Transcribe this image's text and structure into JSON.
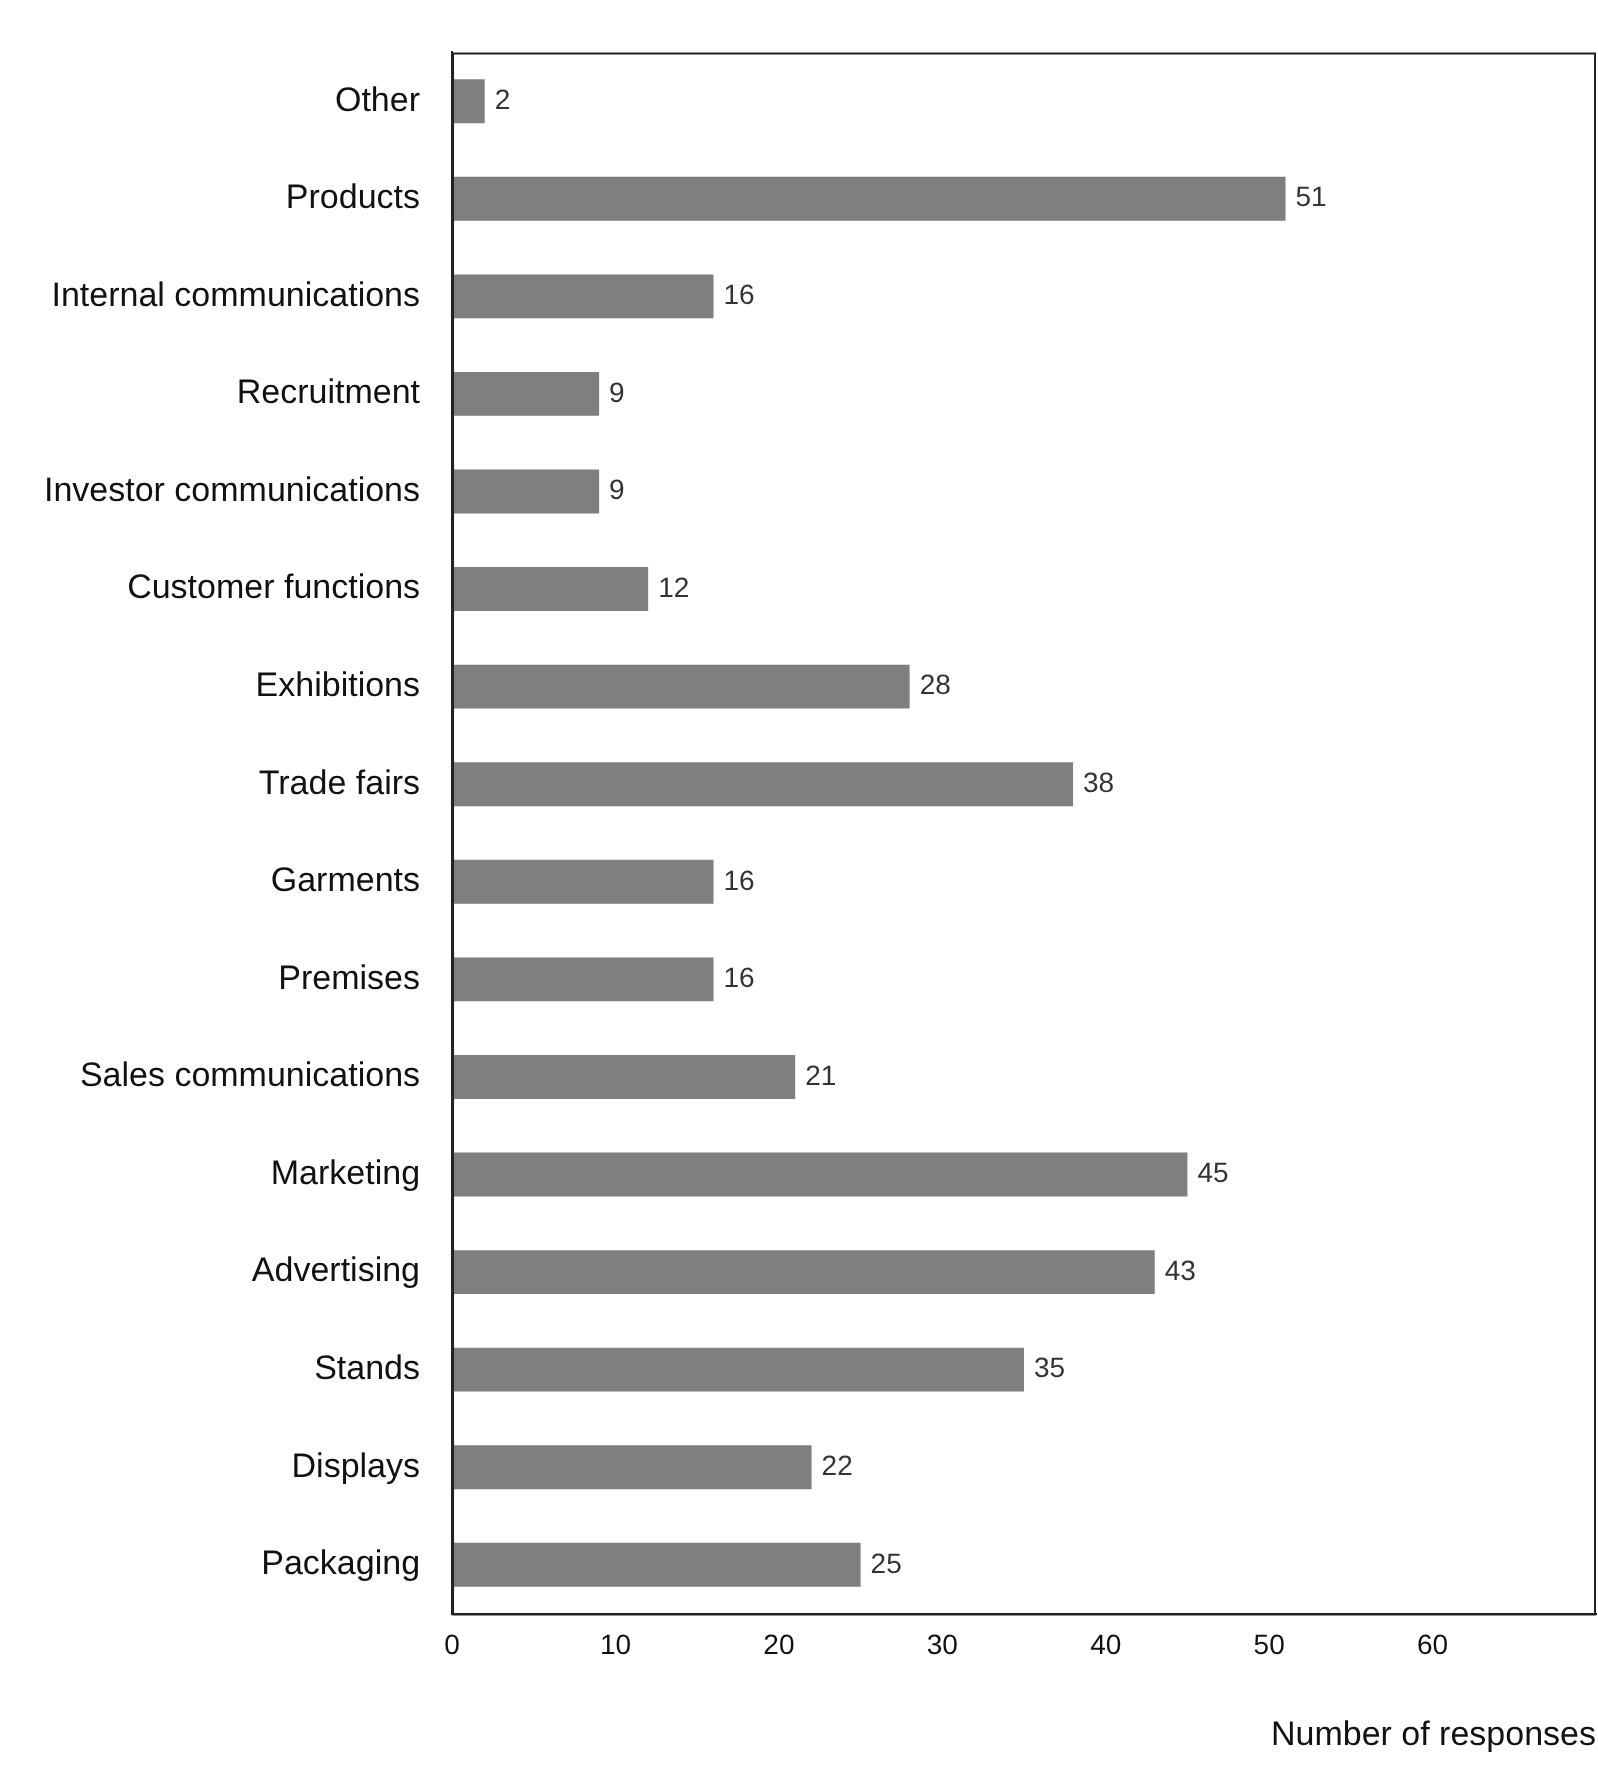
{
  "chart_data": {
    "type": "bar",
    "orientation": "horizontal",
    "xlabel": "Number of responses",
    "categories": [
      "Other",
      "Products",
      "Internal communications",
      "Recruitment",
      "Investor communications",
      "Customer functions",
      "Exhibitions",
      "Trade fairs",
      "Garments",
      "Premises",
      "Sales communications",
      "Marketing",
      "Advertising",
      "Stands",
      "Displays",
      "Packaging"
    ],
    "values": [
      2,
      51,
      16,
      9,
      9,
      12,
      28,
      38,
      16,
      16,
      21,
      45,
      43,
      35,
      22,
      25
    ],
    "color": "#7f7e81",
    "xlim": [
      0,
      70
    ],
    "xticks": [
      0,
      10,
      20,
      30,
      40,
      50,
      60
    ],
    "data_labels": true,
    "grid": false,
    "legend": false
  }
}
